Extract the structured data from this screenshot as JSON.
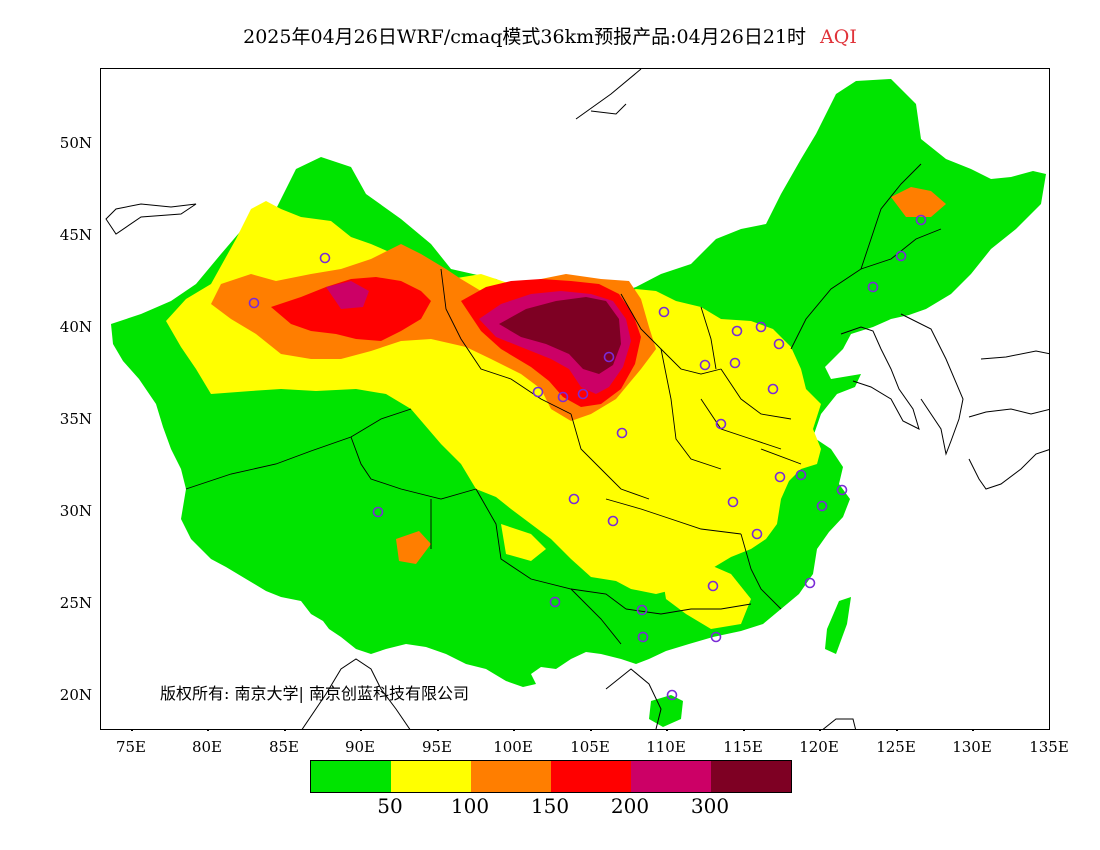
{
  "title": {
    "main": "2025年04月26日WRF/cmaq模式36km预报产品:04月26日21时",
    "variable": "AQI",
    "variable_color": "#e0333a"
  },
  "axes": {
    "lat_labels": [
      "50N",
      "45N",
      "40N",
      "35N",
      "30N",
      "25N",
      "20N"
    ],
    "lon_labels": [
      "75E",
      "80E",
      "85E",
      "90E",
      "95E",
      "100E",
      "105E",
      "110E",
      "115E",
      "120E",
      "125E",
      "130E",
      "135E"
    ]
  },
  "copyright": "版权所有: 南京大学| 南京创蓝科技有限公司",
  "legend": {
    "colors": [
      "#00e400",
      "#ffff00",
      "#ff7e00",
      "#ff0000",
      "#cc0066",
      "#7e0023"
    ],
    "labels": [
      "50",
      "100",
      "150",
      "200",
      "300"
    ]
  },
  "stations_color": "#7a2bd6",
  "stations_count": 34
}
